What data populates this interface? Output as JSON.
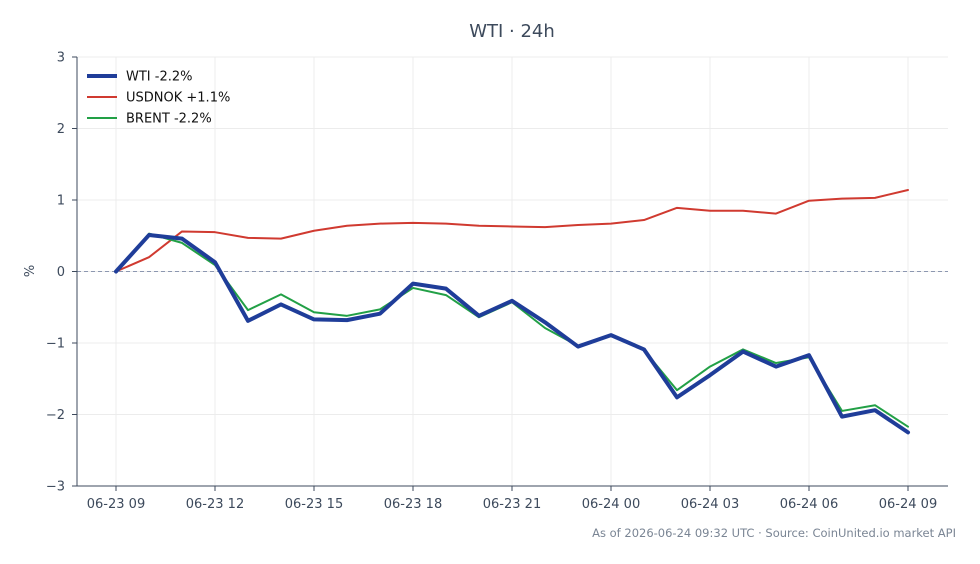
{
  "chart_data": {
    "type": "line",
    "title": "WTI · 24h",
    "xlabel": "",
    "ylabel": "%",
    "ylim": [
      -3,
      3
    ],
    "yticks": [
      -3,
      -2,
      -1,
      0,
      1,
      2,
      3
    ],
    "ytick_labels": [
      "−3",
      "−2",
      "−1",
      "0",
      "1",
      "2",
      "3"
    ],
    "x": [
      "06-23 09",
      "06-23 10",
      "06-23 11",
      "06-23 12",
      "06-23 13",
      "06-23 14",
      "06-23 15",
      "06-23 16",
      "06-23 17",
      "06-23 18",
      "06-23 19",
      "06-23 20",
      "06-23 21",
      "06-23 22",
      "06-23 23",
      "06-24 00",
      "06-24 01",
      "06-24 02",
      "06-24 03",
      "06-24 04",
      "06-24 05",
      "06-24 06",
      "06-24 07",
      "06-24 08",
      "06-24 09"
    ],
    "xtick_labels": [
      "06-23 09",
      "06-23 12",
      "06-23 15",
      "06-23 18",
      "06-23 21",
      "06-24 00",
      "06-24 03",
      "06-24 06",
      "06-24 09"
    ],
    "grid": true,
    "legend_position": "top-left",
    "zero_line": true,
    "series": [
      {
        "name": "WTI -2.2%",
        "color": "#1f3d99",
        "values": [
          0,
          0.51,
          0.46,
          0.13,
          -0.69,
          -0.46,
          -0.67,
          -0.68,
          -0.59,
          -0.17,
          -0.24,
          -0.62,
          -0.41,
          -0.71,
          -1.05,
          -0.89,
          -1.09,
          -1.76,
          -1.45,
          -1.12,
          -1.33,
          -1.17,
          -2.03,
          -1.94,
          -2.25
        ]
      },
      {
        "name": "USDNOK +1.1%",
        "color": "#d03a30",
        "values": [
          0,
          0.2,
          0.56,
          0.55,
          0.47,
          0.46,
          0.57,
          0.64,
          0.67,
          0.68,
          0.67,
          0.64,
          0.63,
          0.62,
          0.65,
          0.67,
          0.72,
          0.89,
          0.85,
          0.85,
          0.81,
          0.99,
          1.02,
          1.03,
          1.14
        ]
      },
      {
        "name": "BRENT -2.2%",
        "color": "#22a046",
        "values": [
          0,
          0.53,
          0.4,
          0.09,
          -0.54,
          -0.32,
          -0.57,
          -0.62,
          -0.53,
          -0.23,
          -0.33,
          -0.64,
          -0.43,
          -0.79,
          -1.04,
          -0.89,
          -1.1,
          -1.66,
          -1.33,
          -1.09,
          -1.28,
          -1.2,
          -1.95,
          -1.87,
          -2.17
        ]
      }
    ],
    "footer": "As of 2026-06-24 09:32 UTC · Source: CoinUnited.io market API"
  }
}
